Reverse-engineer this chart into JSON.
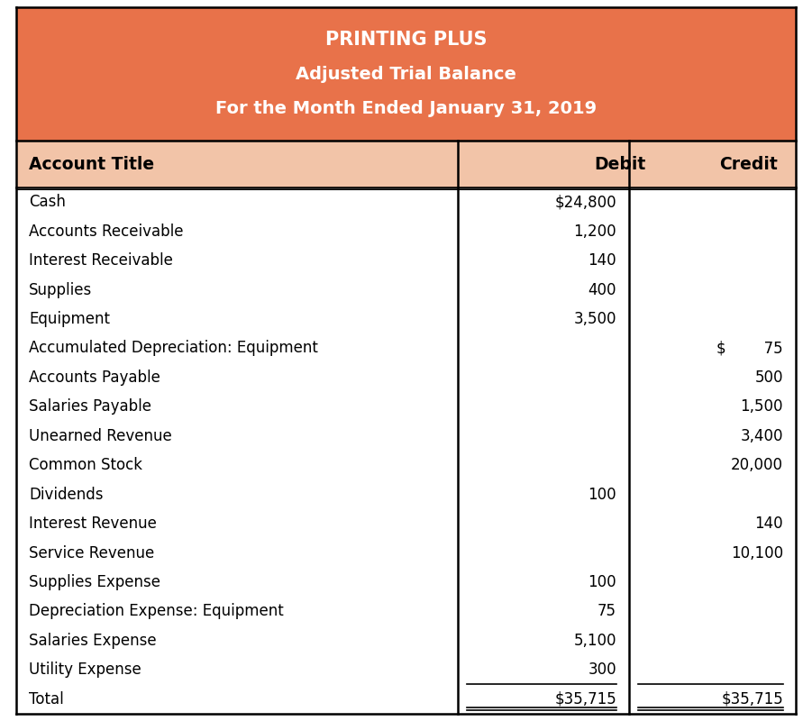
{
  "title_line1": "PRINTING PLUS",
  "title_line2": "Adjusted Trial Balance",
  "title_line3": "For the Month Ended January 31, 2019",
  "header_bg": "#E8724A",
  "header_text_color": "#FFFFFF",
  "subheader_bg": "#F2C4A8",
  "col_header": [
    "Account Title",
    "Debit",
    "Credit"
  ],
  "rows": [
    {
      "account": "Cash",
      "debit": "$24,800",
      "credit": ""
    },
    {
      "account": "Accounts Receivable",
      "debit": "1,200",
      "credit": ""
    },
    {
      "account": "Interest Receivable",
      "debit": "140",
      "credit": ""
    },
    {
      "account": "Supplies",
      "debit": "400",
      "credit": ""
    },
    {
      "account": "Equipment",
      "debit": "3,500",
      "credit": ""
    },
    {
      "account": "Accumulated Depreciation: Equipment",
      "debit": "",
      "credit": "$        75"
    },
    {
      "account": "Accounts Payable",
      "debit": "",
      "credit": "500"
    },
    {
      "account": "Salaries Payable",
      "debit": "",
      "credit": "1,500"
    },
    {
      "account": "Unearned Revenue",
      "debit": "",
      "credit": "3,400"
    },
    {
      "account": "Common Stock",
      "debit": "",
      "credit": "20,000"
    },
    {
      "account": "Dividends",
      "debit": "100",
      "credit": ""
    },
    {
      "account": "Interest Revenue",
      "debit": "",
      "credit": "140"
    },
    {
      "account": "Service Revenue",
      "debit": "",
      "credit": "10,100"
    },
    {
      "account": "Supplies Expense",
      "debit": "100",
      "credit": ""
    },
    {
      "account": "Depreciation Expense: Equipment",
      "debit": "75",
      "credit": ""
    },
    {
      "account": "Salaries Expense",
      "debit": "5,100",
      "credit": ""
    },
    {
      "account": "Utility Expense",
      "debit": "300",
      "credit": ""
    }
  ],
  "total_label": "Total",
  "total_debit": "$35,715",
  "total_credit": "$35,715",
  "body_bg": "#FFFFFF",
  "row_text_color": "#000000",
  "border_color": "#000000",
  "figsize": [
    9.01,
    8.0
  ],
  "dpi": 100
}
